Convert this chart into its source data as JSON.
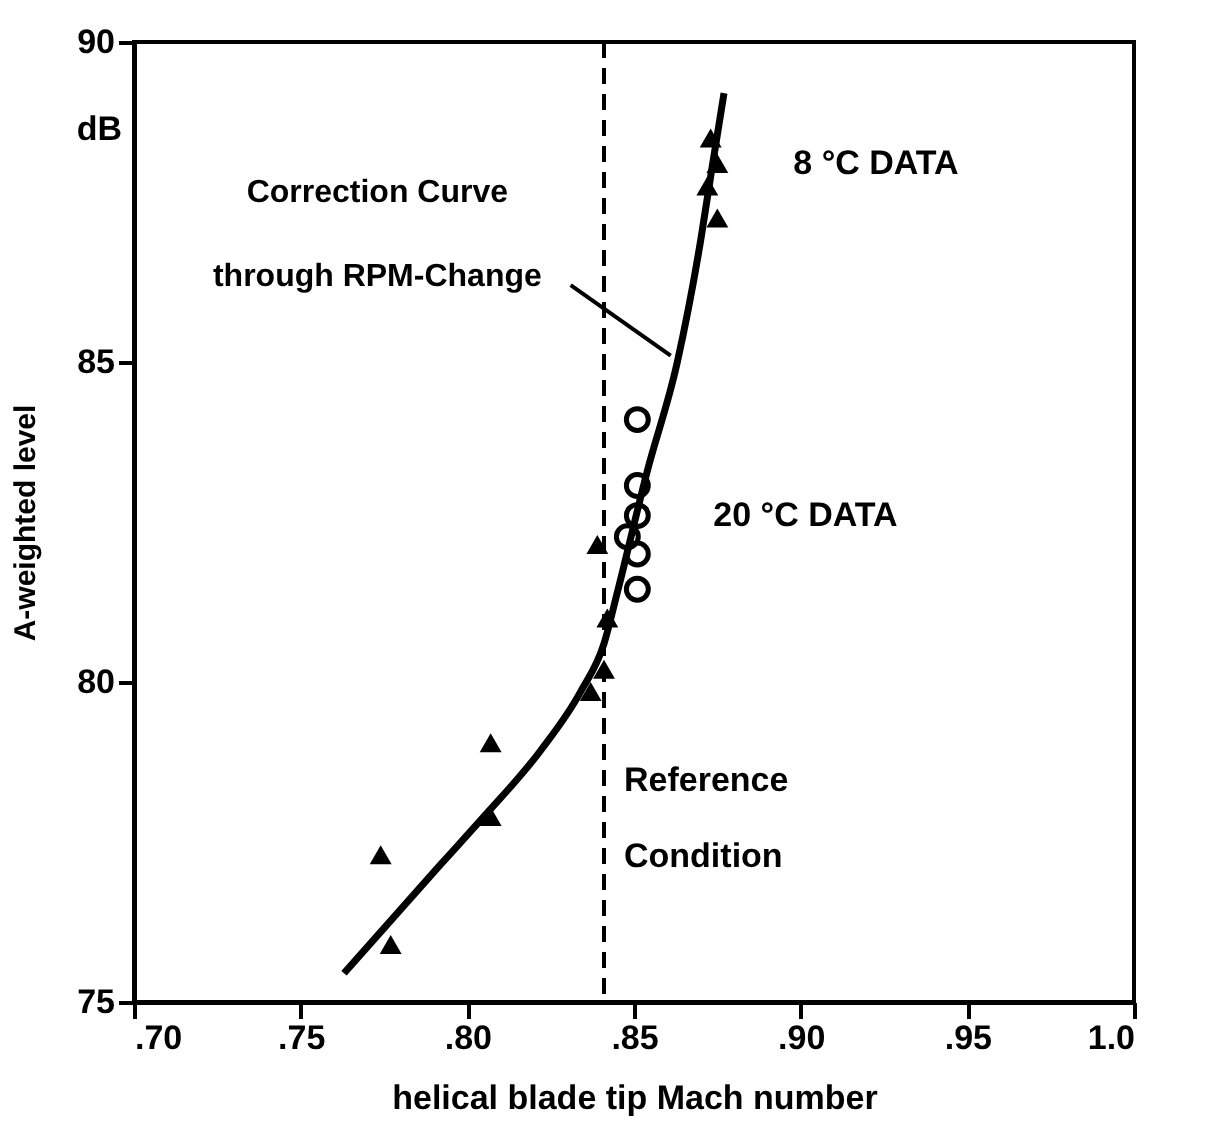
{
  "chart_data": {
    "type": "scatter",
    "xlabel": "helical blade tip Mach number",
    "ylabel": "A-weighted level",
    "xlim": [
      0.7,
      1.0
    ],
    "ylim": [
      75,
      90
    ],
    "xticks": [
      {
        "value": 0.7,
        "label": ".70"
      },
      {
        "value": 0.75,
        "label": ".75"
      },
      {
        "value": 0.8,
        "label": ".80"
      },
      {
        "value": 0.85,
        "label": ".85"
      },
      {
        "value": 0.9,
        "label": ".90"
      },
      {
        "value": 0.95,
        "label": ".95"
      },
      {
        "value": 1.0,
        "label": "1.0"
      }
    ],
    "yticks": [
      75,
      80,
      85,
      90
    ],
    "grid": false,
    "series": [
      {
        "type": "line",
        "color": "#000000",
        "marker": "none",
        "line_style": "solid",
        "x": [
          0.763,
          0.792,
          0.805,
          0.822,
          0.834,
          0.841,
          0.845,
          0.854,
          0.863,
          0.87,
          0.873,
          0.877
        ],
        "values": [
          75.45,
          77.15,
          77.9,
          78.93,
          79.85,
          80.6,
          81.4,
          83.3,
          85.0,
          86.9,
          87.9,
          89.2
        ]
      },
      {
        "color": "#000000",
        "marker": "triangle",
        "x": [
          0.774,
          0.777,
          0.807,
          0.807,
          0.837,
          0.841,
          0.842,
          0.839
        ],
        "values": [
          77.3,
          75.9,
          79.05,
          77.9,
          79.85,
          80.2,
          81.0,
          82.15
        ]
      },
      {
        "color": "#000000",
        "marker": "triangle",
        "x": [
          0.873,
          0.875,
          0.872,
          0.875
        ],
        "values": [
          88.5,
          88.1,
          87.75,
          87.25
        ]
      },
      {
        "color": "#000000",
        "marker": "circle",
        "x": [
          0.851,
          0.851,
          0.851,
          0.848,
          0.851,
          0.851
        ],
        "values": [
          84.1,
          83.07,
          82.6,
          82.27,
          82.0,
          81.45
        ]
      }
    ],
    "ref_lines": [
      {
        "axis": "x",
        "value": 0.841,
        "label": "Reference Condition",
        "color": "#000000",
        "line_style": "dashed"
      }
    ],
    "annotations": [
      "dB",
      "Correction Curve",
      {
        "text": "through RPM-Change",
        "x": 0.863,
        "y": 85.0
      },
      {
        "text": "8 °C DATA",
        "x": 0.875,
        "y": 88.1
      },
      {
        "text": "20 °C DATA",
        "x": 0.851,
        "y": 82.6
      }
    ]
  }
}
